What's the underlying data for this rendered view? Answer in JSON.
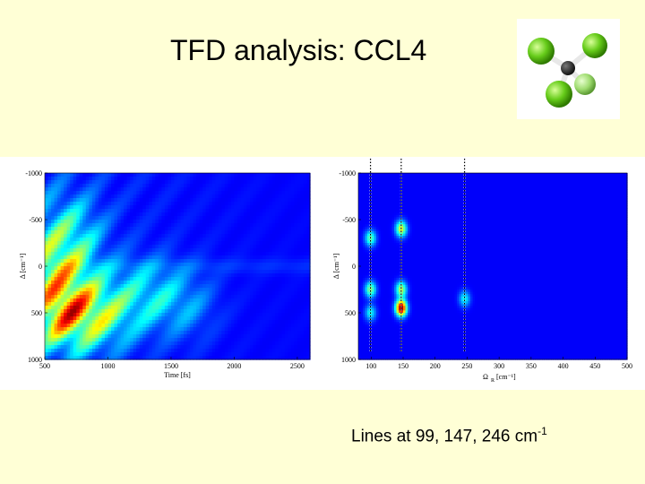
{
  "title": "TFD analysis: CCL4",
  "note": {
    "text": "Lines at 99, 147, 246 cm",
    "sup": "-1"
  },
  "colors": {
    "background": "#ffffd6",
    "colormap": [
      "#00008f",
      "#0000ff",
      "#00ffff",
      "#ffff00",
      "#ff0000",
      "#800000"
    ]
  },
  "chart_data": [
    {
      "type": "heatmap",
      "xlabel": "Time [fs]",
      "ylabel": "Δ [cm⁻¹]",
      "xlim": [
        500,
        2600
      ],
      "ylim": [
        -1000,
        1000
      ],
      "y_reversed": true,
      "x_ticks": [
        "500",
        "1000",
        "1500",
        "2000",
        "2500"
      ],
      "x_tick_values": [
        500,
        1000,
        1500,
        2000,
        2500
      ],
      "y_ticks": [
        "-1000",
        "-500",
        "0",
        "500",
        "1000"
      ],
      "y_tick_values": [
        -1000,
        -500,
        0,
        500,
        1000
      ],
      "features": [
        {
          "x": 600,
          "y": 0,
          "intensity": 0.55
        },
        {
          "x": 600,
          "y": 500,
          "intensity": 0.6
        },
        {
          "x": 750,
          "y": 500,
          "intensity": 0.5
        },
        {
          "x": 1000,
          "y": 500,
          "intensity": 0.4
        },
        {
          "x": 700,
          "y": -400,
          "intensity": 0.35
        },
        {
          "x": 1300,
          "y": 300,
          "intensity": 0.3
        },
        {
          "x": 1600,
          "y": 400,
          "intensity": 0.25
        }
      ]
    },
    {
      "type": "heatmap",
      "xlabel": "Ω",
      "xlabel_sub": "R",
      "xlabel_unit": "[cm⁻¹]",
      "ylabel": "Δ [cm⁻¹]",
      "xlim": [
        80,
        500
      ],
      "ylim": [
        -1000,
        1000
      ],
      "y_reversed": true,
      "x_ticks": [
        "100",
        "150",
        "200",
        "250",
        "300",
        "350",
        "400",
        "450",
        "500"
      ],
      "x_tick_values": [
        100,
        150,
        200,
        250,
        300,
        350,
        400,
        450,
        500
      ],
      "y_ticks": [
        "-1000",
        "-500",
        "0",
        "500",
        "1000"
      ],
      "y_tick_values": [
        -1000,
        -500,
        0,
        500,
        1000
      ],
      "marker_lines": [
        99,
        147,
        246
      ],
      "peaks": [
        {
          "x": 147,
          "y": 450,
          "intensity": 1.0
        },
        {
          "x": 147,
          "y": -400,
          "intensity": 0.55
        },
        {
          "x": 147,
          "y": 250,
          "intensity": 0.5
        },
        {
          "x": 99,
          "y": -300,
          "intensity": 0.4
        },
        {
          "x": 99,
          "y": 250,
          "intensity": 0.45
        },
        {
          "x": 99,
          "y": 500,
          "intensity": 0.3
        },
        {
          "x": 246,
          "y": 350,
          "intensity": 0.3
        }
      ]
    }
  ]
}
